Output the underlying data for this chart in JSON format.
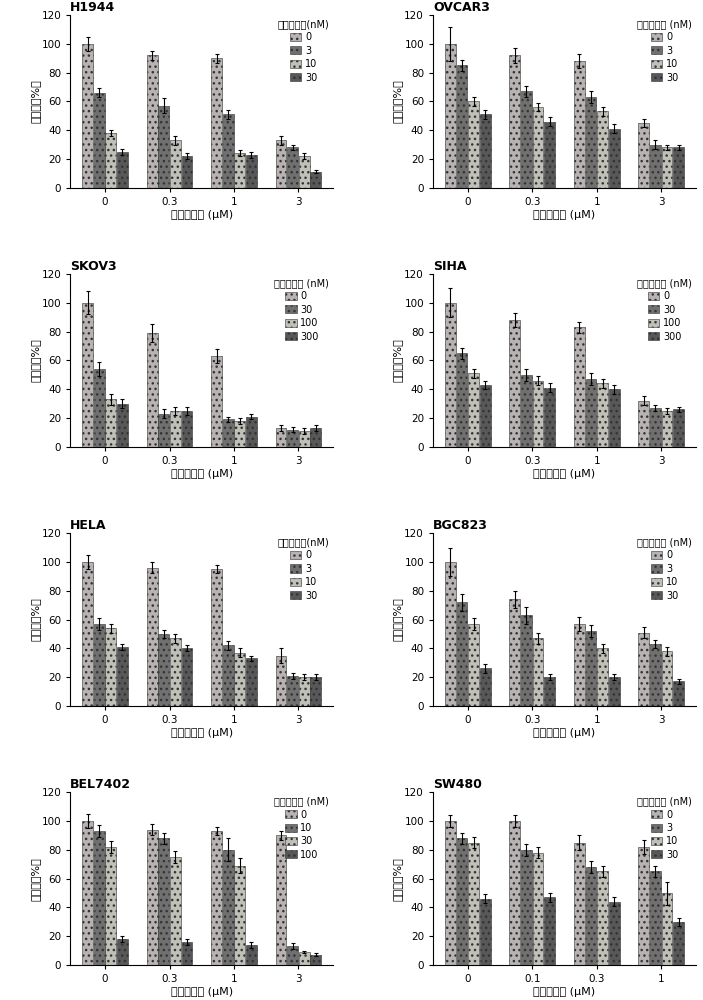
{
  "panels": [
    {
      "title": "H1944",
      "x_labels": [
        "0",
        "0.3",
        "1",
        "3"
      ],
      "xlabel": "雷公藤红素 (μM)",
      "ylabel": "存活率（%）",
      "legend_title": "雷公藤甲素(nM)",
      "legend_labels": [
        "0",
        "3",
        "10",
        "30"
      ],
      "ylim": [
        0,
        120
      ],
      "yticks": [
        0,
        20,
        40,
        60,
        80,
        100,
        120
      ],
      "values": [
        [
          100,
          92,
          90,
          33
        ],
        [
          66,
          57,
          51,
          28
        ],
        [
          38,
          33,
          24,
          22
        ],
        [
          25,
          22,
          23,
          11
        ]
      ],
      "errors": [
        [
          5,
          3,
          3,
          3
        ],
        [
          3,
          5,
          3,
          2
        ],
        [
          2,
          3,
          2,
          2
        ],
        [
          2,
          2,
          2,
          1
        ]
      ]
    },
    {
      "title": "OVCAR3",
      "x_labels": [
        "0",
        "0.3",
        "1",
        "3"
      ],
      "xlabel": "雷公藤红素 (μM)",
      "ylabel": "存活率（%）",
      "legend_title": "雷公藤甲素 (nM)",
      "legend_labels": [
        "0",
        "3",
        "10",
        "30"
      ],
      "ylim": [
        0,
        120
      ],
      "yticks": [
        0,
        20,
        40,
        60,
        80,
        100,
        120
      ],
      "values": [
        [
          100,
          92,
          88,
          45
        ],
        [
          85,
          67,
          63,
          30
        ],
        [
          60,
          56,
          53,
          28
        ],
        [
          51,
          46,
          41,
          28
        ]
      ],
      "errors": [
        [
          12,
          5,
          5,
          3
        ],
        [
          4,
          4,
          4,
          3
        ],
        [
          3,
          3,
          3,
          2
        ],
        [
          3,
          3,
          3,
          2
        ]
      ]
    },
    {
      "title": "SKOV3",
      "x_labels": [
        "0",
        "0.3",
        "1",
        "3"
      ],
      "xlabel": "雷公藤红素 (μM)",
      "ylabel": "存活率（%）",
      "legend_title": "雷公藤甲素 (nM)",
      "legend_labels": [
        "0",
        "30",
        "100",
        "300"
      ],
      "ylim": [
        0,
        120
      ],
      "yticks": [
        0,
        20,
        40,
        60,
        80,
        100,
        120
      ],
      "values": [
        [
          100,
          79,
          63,
          13
        ],
        [
          54,
          23,
          19,
          12
        ],
        [
          33,
          25,
          18,
          11
        ],
        [
          30,
          25,
          21,
          13
        ]
      ],
      "errors": [
        [
          8,
          6,
          5,
          2
        ],
        [
          5,
          3,
          2,
          2
        ],
        [
          4,
          3,
          2,
          2
        ],
        [
          3,
          3,
          2,
          2
        ]
      ]
    },
    {
      "title": "SIHA",
      "x_labels": [
        "0",
        "0.3",
        "1",
        "3"
      ],
      "xlabel": "雷公藤红素 (μM)",
      "ylabel": "存活率（%）",
      "legend_title": "雷公藤甲素 (nM)",
      "legend_labels": [
        "0",
        "30",
        "100",
        "300"
      ],
      "ylim": [
        0,
        120
      ],
      "yticks": [
        0,
        20,
        40,
        60,
        80,
        100,
        120
      ],
      "values": [
        [
          100,
          88,
          83,
          32
        ],
        [
          65,
          50,
          47,
          27
        ],
        [
          51,
          46,
          44,
          25
        ],
        [
          43,
          41,
          40,
          26
        ]
      ],
      "errors": [
        [
          10,
          5,
          4,
          3
        ],
        [
          4,
          4,
          4,
          2
        ],
        [
          3,
          3,
          3,
          2
        ],
        [
          3,
          3,
          3,
          2
        ]
      ]
    },
    {
      "title": "HELA",
      "x_labels": [
        "0",
        "0.3",
        "1",
        "3"
      ],
      "xlabel": "雷公藤红素 (μM)",
      "ylabel": "存活率（%）",
      "legend_title": "雷公藤甲素(nM)",
      "legend_labels": [
        "0",
        "3",
        "10",
        "30"
      ],
      "ylim": [
        0,
        120
      ],
      "yticks": [
        0,
        20,
        40,
        60,
        80,
        100,
        120
      ],
      "values": [
        [
          100,
          96,
          95,
          35
        ],
        [
          57,
          50,
          42,
          21
        ],
        [
          54,
          47,
          37,
          20
        ],
        [
          41,
          40,
          33,
          20
        ]
      ],
      "errors": [
        [
          5,
          4,
          3,
          5
        ],
        [
          4,
          3,
          3,
          2
        ],
        [
          3,
          3,
          3,
          2
        ],
        [
          2,
          2,
          2,
          2
        ]
      ]
    },
    {
      "title": "BGC823",
      "x_labels": [
        "0",
        "0.3",
        "1",
        "3"
      ],
      "xlabel": "雷公藤红素 (μM)",
      "ylabel": "存活率（%）",
      "legend_title": "雷公藤甲素 (nM)",
      "legend_labels": [
        "0",
        "3",
        "10",
        "30"
      ],
      "ylim": [
        0,
        120
      ],
      "yticks": [
        0,
        20,
        40,
        60,
        80,
        100,
        120
      ],
      "values": [
        [
          100,
          74,
          57,
          51
        ],
        [
          72,
          63,
          52,
          43
        ],
        [
          57,
          47,
          40,
          38
        ],
        [
          26,
          20,
          20,
          17
        ]
      ],
      "errors": [
        [
          10,
          6,
          5,
          4
        ],
        [
          6,
          6,
          4,
          3
        ],
        [
          4,
          4,
          3,
          3
        ],
        [
          3,
          2,
          2,
          2
        ]
      ]
    },
    {
      "title": "BEL7402",
      "x_labels": [
        "0",
        "0.3",
        "1",
        "3"
      ],
      "xlabel": "雷公藤红素 (μM)",
      "ylabel": "存活率（%）",
      "legend_title": "雷公藤甲素 (nM)",
      "legend_labels": [
        "0",
        "10",
        "30",
        "100"
      ],
      "ylim": [
        0,
        120
      ],
      "yticks": [
        0,
        20,
        40,
        60,
        80,
        100,
        120
      ],
      "values": [
        [
          100,
          94,
          93,
          90
        ],
        [
          93,
          88,
          80,
          13
        ],
        [
          82,
          75,
          69,
          9
        ],
        [
          18,
          16,
          14,
          7
        ]
      ],
      "errors": [
        [
          5,
          4,
          3,
          3
        ],
        [
          4,
          4,
          8,
          2
        ],
        [
          4,
          4,
          5,
          1
        ],
        [
          2,
          2,
          2,
          1
        ]
      ]
    },
    {
      "title": "SW480",
      "x_labels": [
        "0",
        "0.1",
        "0.3",
        "1"
      ],
      "xlabel": "雷公藤红素 (μM)",
      "ylabel": "存活率（%）",
      "legend_title": "雷公藤甲素 (nM)",
      "legend_labels": [
        "0",
        "3",
        "10",
        "30"
      ],
      "ylim": [
        0,
        120
      ],
      "yticks": [
        0,
        20,
        40,
        60,
        80,
        100,
        120
      ],
      "values": [
        [
          100,
          100,
          85,
          82
        ],
        [
          88,
          80,
          68,
          65
        ],
        [
          85,
          78,
          65,
          50
        ],
        [
          46,
          47,
          44,
          30
        ]
      ],
      "errors": [
        [
          4,
          4,
          5,
          5
        ],
        [
          4,
          4,
          4,
          4
        ],
        [
          4,
          4,
          4,
          8
        ],
        [
          3,
          3,
          3,
          3
        ]
      ]
    }
  ],
  "bar_colors": [
    "#b0b0b0",
    "#707070",
    "#c8c8c8",
    "#585858"
  ],
  "fig_width": 7.03,
  "fig_height": 10.0,
  "dpi": 100
}
